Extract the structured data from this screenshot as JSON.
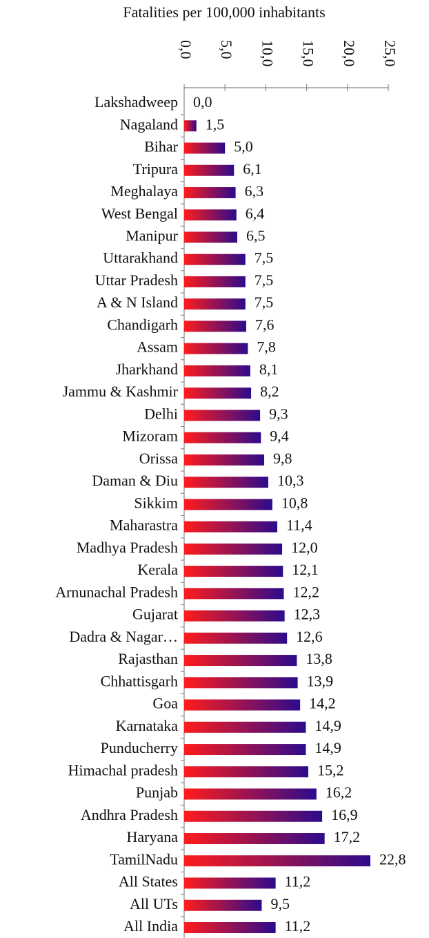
{
  "chart_data": {
    "type": "barh",
    "title": "Fatalities per 100,000 inhabitants",
    "categories": [
      "Lakshadweep",
      "Nagaland",
      "Bihar",
      "Tripura",
      "Meghalaya",
      "West Bengal",
      "Manipur",
      "Uttarakhand",
      "Uttar Pradesh",
      "A & N Island",
      "Chandigarh",
      "Assam",
      "Jharkhand",
      "Jammu & Kashmir",
      "Delhi",
      "Mizoram",
      "Orissa",
      "Daman & Diu",
      "Sikkim",
      "Maharastra",
      "Madhya Pradesh",
      "Kerala",
      "Arnunachal Pradesh",
      "Gujarat",
      "Dadra & Nagar…",
      "Rajasthan",
      "Chhattisgarh",
      "Goa",
      "Karnataka",
      "Punducherry",
      "Himachal pradesh",
      "Punjab",
      "Andhra Pradesh",
      "Haryana",
      "TamilNadu",
      "All States",
      "All UTs",
      "All India"
    ],
    "values": [
      0,
      1.5,
      5,
      6.1,
      6.3,
      6.4,
      6.5,
      7.5,
      7.5,
      7.5,
      7.6,
      7.8,
      8.1,
      8.2,
      9.3,
      9.4,
      9.8,
      10.3,
      10.8,
      11.4,
      12,
      12.1,
      12.2,
      12.3,
      12.6,
      13.8,
      13.9,
      14.2,
      14.9,
      14.9,
      15.2,
      16.2,
      16.9,
      17.2,
      22.8,
      11.2,
      9.5,
      11.2
    ],
    "value_labels": [
      "0,0",
      "1,5",
      "5,0",
      "6,1",
      "6,3",
      "6,4",
      "6,5",
      "7,5",
      "7,5",
      "7,5",
      "7,6",
      "7,8",
      "8,1",
      "8,2",
      "9,3",
      "9,4",
      "9,8",
      "10,3",
      "10,8",
      "11,4",
      "12,0",
      "12,1",
      "12,2",
      "12,3",
      "12,6",
      "13,8",
      "13,9",
      "14,2",
      "14,9",
      "14,9",
      "15,2",
      "16,2",
      "16,9",
      "17,2",
      "22,8",
      "11,2",
      "9,5",
      "11,2"
    ],
    "colors": [
      "#ff1c1c",
      "#2c0b8c"
    ],
    "xlim": [
      0,
      25
    ],
    "xticks": [
      {
        "value": 0,
        "label": "0,0"
      },
      {
        "value": 5,
        "label": "5,0"
      },
      {
        "value": 10,
        "label": "10,0"
      },
      {
        "value": 15,
        "label": "15,0"
      },
      {
        "value": 20,
        "label": "20,0"
      },
      {
        "value": 25,
        "label": "25,0"
      }
    ]
  }
}
